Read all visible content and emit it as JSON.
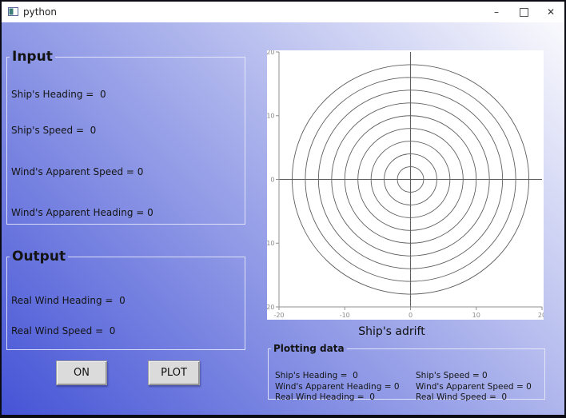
{
  "window": {
    "title": "python",
    "minimize_glyph": "–",
    "close_glyph": "✕"
  },
  "colors": {
    "gradient_top_right": "#fafafd",
    "gradient_mid": "#9aa3e8",
    "gradient_bottom_left": "#4554d6",
    "button_bg": "#dbdbdb",
    "frame_border": "#eceefa",
    "plot_background": "#ffffff",
    "plot_line": "#5f5f5f"
  },
  "input_section": {
    "legend": "Input",
    "items": [
      "Ship's Heading =  0",
      "Ship's Speed =  0",
      "Wind's Apparent Speed = 0",
      "Wind's Apparent Heading = 0"
    ]
  },
  "output_section": {
    "legend": "Output",
    "items": [
      "Real Wind Heading =  0",
      "Real Wind Speed =  0"
    ]
  },
  "buttons": {
    "on": "ON",
    "plot": "PLOT"
  },
  "chart_data": {
    "type": "line",
    "caption": "Ship's adrift",
    "title": "",
    "xlabel": "",
    "ylabel": "",
    "xlim": [
      -20,
      20
    ],
    "ylim": [
      -20,
      20
    ],
    "xticks": [
      -20,
      -10,
      0,
      10,
      20
    ],
    "yticks": [
      20,
      10,
      0,
      -10,
      -20
    ],
    "grid": false,
    "legend_position": "none",
    "series": [
      {
        "name": "concentric-circles",
        "center": [
          0,
          0
        ],
        "circle_radii": [
          2,
          4,
          6,
          8,
          10,
          12,
          14,
          16,
          18
        ]
      },
      {
        "name": "crosshair-axes",
        "vertical_line_x": 0,
        "horizontal_line_y": 0
      }
    ]
  },
  "plotting_data": {
    "legend": "Plotting data",
    "rows": [
      [
        "Ship's Heading =  0",
        "Ship's Speed = 0"
      ],
      [
        "Wind's Apparent Heading = 0",
        "Wind's Apparent Speed = 0"
      ],
      [
        "Real Wind Heading =  0",
        "Real Wind Speed =  0"
      ]
    ]
  }
}
